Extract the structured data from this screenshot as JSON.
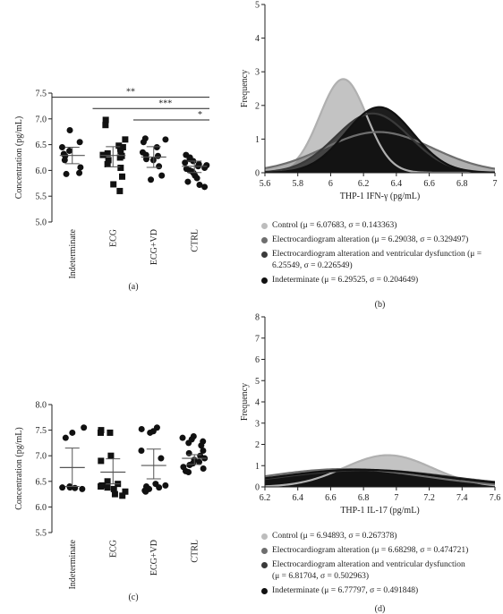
{
  "chart_data": [
    {
      "panel": "(a)",
      "type": "scatter",
      "ylabel": "Concentration (pg/mL)",
      "ylim": [
        5.0,
        7.5
      ],
      "yticks": [
        "5.0",
        "5.5",
        "6.0",
        "6.5",
        "7.0",
        "7.5"
      ],
      "categories": [
        "Indeterminate",
        "ECG",
        "ECG+VD",
        "CTRL"
      ],
      "markers": [
        "circle",
        "square",
        "circle",
        "circle"
      ],
      "summary": [
        {
          "mean": 6.29,
          "err_low": 6.13,
          "err_high": 6.45
        },
        {
          "mean": 6.29,
          "err_low": 6.07,
          "err_high": 6.46
        },
        {
          "mean": 6.26,
          "err_low": 6.06,
          "err_high": 6.46
        },
        {
          "mean": 6.08,
          "err_low": 5.96,
          "err_high": 6.18
        }
      ],
      "points": [
        [
          6.78,
          6.55,
          6.45,
          6.38,
          6.32,
          6.28,
          6.2,
          6.06,
          5.95,
          5.93
        ],
        [
          6.98,
          6.88,
          6.6,
          6.48,
          6.45,
          6.42,
          6.38,
          6.33,
          6.3,
          6.28,
          6.25,
          6.2,
          6.12,
          6.05,
          5.88,
          5.73,
          5.6
        ],
        [
          6.62,
          6.6,
          6.55,
          6.45,
          6.35,
          6.3,
          6.28,
          6.22,
          6.2,
          6.08,
          5.9,
          5.82
        ],
        [
          6.3,
          6.25,
          6.22,
          6.18,
          6.15,
          6.12,
          6.1,
          6.08,
          6.05,
          6.03,
          6.0,
          5.98,
          5.95,
          5.9,
          5.85,
          5.78,
          5.72,
          5.68
        ]
      ],
      "significance": [
        "**",
        "***",
        "*"
      ]
    },
    {
      "panel": "(b)",
      "type": "area",
      "xlabel": "THP-1 IFN-γ (pg/mL)",
      "ylabel": "Frequency",
      "xlim": [
        5.6,
        7.0
      ],
      "ylim": [
        0,
        5
      ],
      "xticks": [
        "5.6",
        "5.8",
        "6",
        "6.2",
        "6.4",
        "6.6",
        "6.8",
        "7"
      ],
      "yticks": [
        "0",
        "1",
        "2",
        "3",
        "4",
        "5"
      ],
      "series": [
        {
          "name": "Control",
          "mu": 6.07683,
          "sigma": 0.143363,
          "color": "#bdbdbd"
        },
        {
          "name": "Electrocardiogram alteration",
          "mu": 6.29038,
          "sigma": 0.329497,
          "color": "#6e6e6e"
        },
        {
          "name": "Electrocardiogram alteration and ventricular dysfunction",
          "mu": 6.25549,
          "sigma": 0.226549,
          "color": "#3a3a3a"
        },
        {
          "name": "Indeterminate",
          "mu": 6.29525,
          "sigma": 0.204649,
          "color": "#111111"
        }
      ]
    },
    {
      "panel": "(c)",
      "type": "scatter",
      "ylabel": "Concentration (pg/mL)",
      "ylim": [
        5.5,
        8.0
      ],
      "yticks": [
        "5.5",
        "6.0",
        "6.5",
        "7.0",
        "7.5",
        "8.0"
      ],
      "categories": [
        "Indeterminate",
        "ECG",
        "ECG+VD",
        "CTRL"
      ],
      "markers": [
        "circle",
        "square",
        "circle",
        "circle"
      ],
      "summary": [
        {
          "mean": 6.77,
          "err_low": 6.4,
          "err_high": 7.15
        },
        {
          "mean": 6.68,
          "err_low": 6.45,
          "err_high": 6.94
        },
        {
          "mean": 6.81,
          "err_low": 6.55,
          "err_high": 7.13
        },
        {
          "mean": 6.95,
          "err_low": 6.83,
          "err_high": 7.02
        }
      ],
      "points": [
        [
          7.55,
          7.45,
          7.35,
          6.4,
          6.38,
          6.38,
          6.37,
          6.35
        ],
        [
          7.5,
          7.45,
          7.45,
          7.0,
          6.9,
          6.5,
          6.45,
          6.42,
          6.4,
          6.38,
          6.35,
          6.3,
          6.25,
          6.22
        ],
        [
          7.55,
          7.52,
          7.48,
          7.45,
          7.1,
          6.95,
          6.45,
          6.42,
          6.4,
          6.38,
          6.35,
          6.32,
          6.3
        ],
        [
          7.38,
          7.35,
          7.32,
          7.28,
          7.25,
          7.2,
          7.1,
          7.05,
          7.0,
          6.95,
          6.92,
          6.88,
          6.85,
          6.82,
          6.78,
          6.75,
          6.7,
          6.68
        ]
      ]
    },
    {
      "panel": "(d)",
      "type": "area",
      "xlabel": "THP-1 IL-17 (pg/mL)",
      "ylabel": "Frequency",
      "xlim": [
        6.2,
        7.6
      ],
      "ylim": [
        0,
        8
      ],
      "xticks": [
        "6.2",
        "6.4",
        "6.6",
        "6.8",
        "7",
        "7.2",
        "7.4",
        "7.6"
      ],
      "yticks": [
        "0",
        "1",
        "2",
        "3",
        "4",
        "5",
        "6",
        "7",
        "8"
      ],
      "series": [
        {
          "name": "Control",
          "mu": 6.94893,
          "sigma": 0.267378,
          "color": "#bdbdbd"
        },
        {
          "name": "Electrocardiogram alteration",
          "mu": 6.68298,
          "sigma": 0.474721,
          "color": "#6e6e6e"
        },
        {
          "name": "Electrocardiogram alteration and ventricular dysfunction",
          "mu": 6.81704,
          "sigma": 0.502963,
          "color": "#3a3a3a"
        },
        {
          "name": "Indeterminate",
          "mu": 6.77797,
          "sigma": 0.491848,
          "color": "#111111"
        }
      ]
    }
  ],
  "legend_b": [
    "Control (μ = 6.07683, σ = 0.143363)",
    "Electrocardiogram alteration (μ = 6.29038, σ = 0.329497)",
    "Electrocardiogram alteration and ventricular dysfunction (μ = 6.25549, σ = 0.226549)",
    "Indeterminate (μ = 6.29525, σ = 0.204649)"
  ],
  "legend_d": [
    "Control (μ = 6.94893, σ = 0.267378)",
    "Electrocardiogram alteration (μ = 6.68298, σ = 0.474721)",
    "Electrocardiogram alteration and ventricular dysfunction\n(μ = 6.81704, σ = 0.502963)",
    "Indeterminate (μ = 6.77797, σ = 0.491848)"
  ],
  "legend_colors": [
    "#bdbdbd",
    "#6e6e6e",
    "#3a3a3a",
    "#111111"
  ]
}
